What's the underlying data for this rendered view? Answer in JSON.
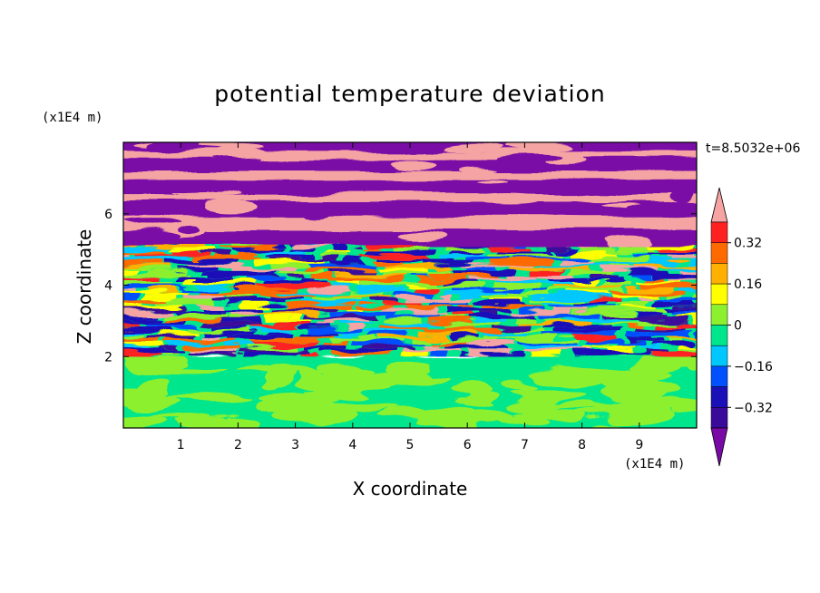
{
  "chart_data": {
    "type": "heatmap",
    "title": "potential temperature deviation",
    "xlabel": "X coordinate",
    "ylabel": "Z coordinate",
    "x_unit": "(x1E4 m)",
    "y_unit": "(x1E4 m)",
    "time_label": "t=8.5032e+06",
    "xlim": [
      0,
      10
    ],
    "ylim": [
      0,
      8
    ],
    "x_ticks": [
      "1",
      "2",
      "3",
      "4",
      "5",
      "6",
      "7",
      "8",
      "9"
    ],
    "y_ticks": [
      "2",
      "4",
      "6"
    ],
    "colorbar": {
      "levels": [
        -0.48,
        -0.4,
        -0.32,
        -0.24,
        -0.16,
        -0.08,
        0,
        0.08,
        0.16,
        0.24,
        0.32,
        0.4,
        0.48
      ],
      "colors": [
        "#7a0aa6",
        "#3a0a9a",
        "#1a10b8",
        "#0050ff",
        "#00c8ff",
        "#00e68c",
        "#8cf02e",
        "#ffff00",
        "#ffb000",
        "#ff6a00",
        "#ff2020",
        "#f5a3a3"
      ],
      "labels": [
        "0.32",
        "0.16",
        "0",
        "−0.16",
        "−0.32"
      ],
      "extend": "both"
    },
    "layers": [
      {
        "z_range": [
          0,
          2.0
        ],
        "description_value": "near 0 (green/light green)"
      },
      {
        "z_range": [
          2.0,
          5.3
        ],
        "description_value": "alternating bands from -0.4 to 0.4"
      },
      {
        "z_range": [
          5.3,
          8.0
        ],
        "description_value": "alternating bands of about +0.48 and -0.48"
      }
    ]
  }
}
